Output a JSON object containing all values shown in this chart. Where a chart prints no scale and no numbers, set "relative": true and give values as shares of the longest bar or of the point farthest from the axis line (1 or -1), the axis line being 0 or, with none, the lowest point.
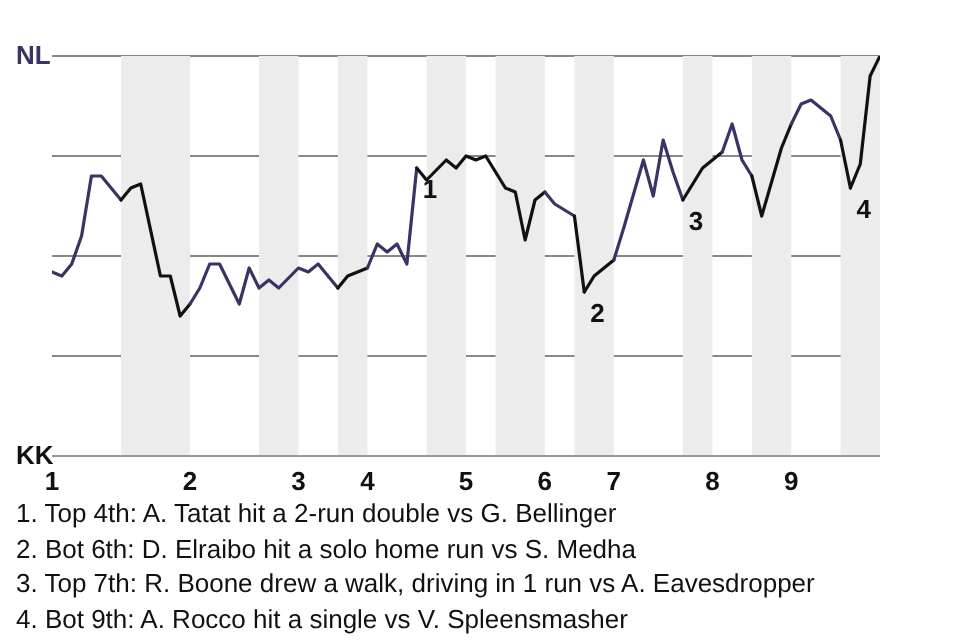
{
  "chart_data": {
    "type": "line",
    "relative": true,
    "categories": [
      "1",
      null,
      null,
      null,
      null,
      null,
      null,
      null,
      null,
      null,
      null,
      null,
      null,
      null,
      "2",
      null,
      null,
      null,
      null,
      null,
      null,
      null,
      null,
      null,
      null,
      "3",
      null,
      null,
      null,
      null,
      null,
      null,
      "4",
      null,
      null,
      null,
      null,
      null,
      null,
      null,
      null,
      null,
      "5",
      null,
      null,
      null,
      null,
      null,
      null,
      null,
      "6",
      null,
      null,
      null,
      null,
      null,
      null,
      "7",
      null,
      null,
      null,
      null,
      null,
      null,
      null,
      null,
      null,
      "8",
      null,
      null,
      null,
      null,
      null,
      null,
      null,
      "9",
      null,
      null,
      null,
      null,
      null,
      null,
      null,
      null,
      null
    ],
    "series": [
      {
        "color": "#3a3366",
        "values": [
          0.46,
          0.45,
          0.48,
          0.55,
          0.7,
          0.7,
          null,
          0.64,
          null,
          null,
          null,
          null,
          null,
          null,
          null,
          null,
          null,
          null,
          null,
          null,
          null,
          null,
          null,
          null,
          null,
          null,
          null,
          null,
          null,
          null,
          null,
          null,
          null,
          null,
          null,
          null,
          null,
          null,
          null,
          null,
          null,
          null,
          null,
          null,
          null,
          null,
          null,
          null,
          null,
          null,
          null,
          null,
          null,
          null,
          null,
          null,
          null,
          null,
          null,
          null,
          null,
          null,
          null,
          null,
          null,
          null,
          null,
          null,
          null,
          null,
          null,
          null,
          null,
          null,
          null,
          null,
          null,
          null,
          null,
          null,
          null,
          null,
          null,
          null,
          null
        ]
      },
      {
        "color": "#111111",
        "values": [
          null,
          null,
          null,
          null,
          null,
          null,
          null,
          0.64,
          0.67,
          0.68,
          null,
          0.45,
          0.45,
          0.35,
          0.38,
          null,
          null,
          null,
          null,
          null,
          null,
          null,
          null,
          null,
          null,
          null,
          null,
          null,
          null,
          null,
          null,
          null,
          null,
          null,
          null,
          null,
          null,
          null,
          null,
          null,
          null,
          null,
          null,
          null,
          null,
          null,
          null,
          null,
          null,
          null,
          null,
          null,
          null,
          null,
          null,
          null,
          null,
          null,
          null,
          null,
          null,
          null,
          null,
          null,
          null,
          null,
          null,
          null,
          null,
          null,
          null,
          null,
          null,
          null,
          null,
          null,
          null,
          null,
          null,
          null,
          null,
          null,
          null,
          null,
          null
        ]
      },
      {
        "color": "#3a3366",
        "values": [
          null,
          null,
          null,
          null,
          null,
          null,
          null,
          null,
          null,
          null,
          null,
          null,
          null,
          null,
          0.38,
          0.42,
          0.48,
          0.48,
          null,
          0.38,
          0.47,
          0.42,
          0.44,
          0.42,
          null,
          0.47,
          0.46,
          0.48,
          null,
          0.42,
          null,
          null,
          null,
          null,
          null,
          null,
          null,
          null,
          null,
          null,
          null,
          null,
          null,
          null,
          null,
          null,
          null,
          null,
          null,
          null,
          null,
          null,
          null,
          null,
          null,
          null,
          null,
          null,
          null,
          null,
          null,
          null,
          null,
          null,
          null,
          null,
          null,
          null,
          null,
          null,
          null,
          null,
          null,
          null,
          null,
          null,
          null,
          null,
          null,
          null,
          null,
          null,
          null,
          null,
          null
        ]
      },
      {
        "color": "#111111",
        "values": [
          null,
          null,
          null,
          null,
          null,
          null,
          null,
          null,
          null,
          null,
          null,
          null,
          null,
          null,
          null,
          null,
          null,
          null,
          null,
          null,
          null,
          null,
          null,
          null,
          null,
          null,
          null,
          null,
          null,
          0.42,
          0.45,
          null,
          0.47,
          null,
          null,
          null,
          null,
          null,
          null,
          null,
          null,
          null,
          null,
          null,
          null,
          null,
          null,
          null,
          null,
          null,
          null,
          null,
          null,
          null,
          null,
          null,
          null,
          null,
          null,
          null,
          null,
          null,
          null,
          null,
          null,
          null,
          null,
          null,
          null,
          null,
          null,
          null,
          null,
          null,
          null,
          null,
          null,
          null,
          null,
          null,
          null,
          null,
          null,
          null,
          null
        ]
      },
      {
        "name": "1",
        "color": "#3a3366",
        "values": [
          null,
          null,
          null,
          null,
          null,
          null,
          null,
          null,
          null,
          null,
          null,
          null,
          null,
          null,
          null,
          null,
          null,
          null,
          null,
          null,
          null,
          null,
          null,
          null,
          null,
          null,
          null,
          null,
          null,
          null,
          null,
          null,
          0.47,
          0.53,
          0.51,
          0.53,
          0.48,
          0.72,
          null,
          null,
          null,
          null,
          null,
          null,
          null,
          null,
          null,
          null,
          null,
          null,
          null,
          null,
          null,
          null,
          null,
          null,
          null,
          null,
          null,
          null,
          null,
          null,
          null,
          null,
          null,
          null,
          null,
          null,
          null,
          null,
          null,
          null,
          null,
          null,
          null,
          null,
          null,
          null,
          null,
          null,
          null,
          null,
          null,
          null,
          null
        ]
      },
      {
        "color": "#111111",
        "values": [
          null,
          null,
          null,
          null,
          null,
          null,
          null,
          null,
          null,
          null,
          null,
          null,
          null,
          null,
          null,
          null,
          null,
          null,
          null,
          null,
          null,
          null,
          null,
          null,
          null,
          null,
          null,
          null,
          null,
          null,
          null,
          null,
          null,
          null,
          null,
          null,
          null,
          0.72,
          0.69,
          null,
          0.74,
          0.72,
          0.75,
          0.74,
          0.75,
          0.71,
          0.67,
          0.66,
          0.54,
          0.64,
          0.66,
          null,
          null,
          null,
          null,
          null,
          null,
          null,
          null,
          null,
          null,
          null,
          null,
          null,
          null,
          null,
          null,
          null,
          null,
          null,
          null,
          null,
          null,
          null,
          null,
          null,
          null,
          null,
          null,
          null,
          null,
          null,
          null,
          null,
          null
        ]
      },
      {
        "color": "#3a3366",
        "values": [
          null,
          null,
          null,
          null,
          null,
          null,
          null,
          null,
          null,
          null,
          null,
          null,
          null,
          null,
          null,
          null,
          null,
          null,
          null,
          null,
          null,
          null,
          null,
          null,
          null,
          null,
          null,
          null,
          null,
          null,
          null,
          null,
          null,
          null,
          null,
          null,
          null,
          null,
          null,
          null,
          null,
          null,
          null,
          null,
          null,
          null,
          null,
          null,
          null,
          null,
          0.66,
          0.63,
          null,
          0.6,
          null,
          null,
          null,
          null,
          null,
          null,
          null,
          null,
          null,
          null,
          null,
          null,
          null,
          null,
          null,
          null,
          null,
          null,
          null,
          null,
          null,
          null,
          null,
          null,
          null,
          null,
          null,
          null,
          null,
          null,
          null
        ]
      },
      {
        "name": "2",
        "color": "#111111",
        "values": [
          null,
          null,
          null,
          null,
          null,
          null,
          null,
          null,
          null,
          null,
          null,
          null,
          null,
          null,
          null,
          null,
          null,
          null,
          null,
          null,
          null,
          null,
          null,
          null,
          null,
          null,
          null,
          null,
          null,
          null,
          null,
          null,
          null,
          null,
          null,
          null,
          null,
          null,
          null,
          null,
          null,
          null,
          null,
          null,
          null,
          null,
          null,
          null,
          null,
          null,
          null,
          null,
          null,
          0.6,
          0.41,
          null,
          null,
          null,
          null,
          null,
          null,
          null,
          null,
          null,
          null,
          null,
          null,
          null,
          null,
          null,
          null,
          null,
          null,
          null,
          null,
          null,
          null,
          null,
          null,
          null,
          null,
          null,
          null,
          null,
          null
        ]
      },
      {
        "color": "#111111",
        "values": [
          null,
          null,
          null,
          null,
          null,
          null,
          null,
          null,
          null,
          null,
          null,
          null,
          null,
          null,
          null,
          null,
          null,
          null,
          null,
          null,
          null,
          null,
          null,
          null,
          null,
          null,
          null,
          null,
          null,
          null,
          null,
          null,
          null,
          null,
          null,
          null,
          null,
          null,
          null,
          null,
          null,
          null,
          null,
          null,
          null,
          null,
          null,
          null,
          null,
          null,
          null,
          null,
          null,
          null,
          0.41,
          0.45,
          0.47,
          0.49,
          null,
          null,
          null,
          null,
          null,
          null,
          null,
          null,
          null,
          null,
          null,
          null,
          null,
          null,
          null,
          null,
          null,
          null,
          null,
          null,
          null,
          null,
          null,
          null,
          null,
          null,
          null
        ]
      },
      {
        "name": "3",
        "color": "#3a3366",
        "values": [
          null,
          null,
          null,
          null,
          null,
          null,
          null,
          null,
          null,
          null,
          null,
          null,
          null,
          null,
          null,
          null,
          null,
          null,
          null,
          null,
          null,
          null,
          null,
          null,
          null,
          null,
          null,
          null,
          null,
          null,
          null,
          null,
          null,
          null,
          null,
          null,
          null,
          null,
          null,
          null,
          null,
          null,
          null,
          null,
          null,
          null,
          null,
          null,
          null,
          null,
          null,
          null,
          null,
          null,
          null,
          null,
          null,
          0.49,
          0.57,
          null,
          0.74,
          0.65,
          0.79,
          0.71,
          0.64,
          null,
          null,
          null,
          null,
          null,
          null,
          null,
          null,
          null,
          null,
          null,
          null,
          null,
          null,
          null,
          null,
          null,
          null,
          null,
          null
        ]
      },
      {
        "color": "#111111",
        "values": [
          null,
          null,
          null,
          null,
          null,
          null,
          null,
          null,
          null,
          null,
          null,
          null,
          null,
          null,
          null,
          null,
          null,
          null,
          null,
          null,
          null,
          null,
          null,
          null,
          null,
          null,
          null,
          null,
          null,
          null,
          null,
          null,
          null,
          null,
          null,
          null,
          null,
          null,
          null,
          null,
          null,
          null,
          null,
          null,
          null,
          null,
          null,
          null,
          null,
          null,
          null,
          null,
          null,
          null,
          null,
          null,
          null,
          null,
          null,
          null,
          null,
          null,
          null,
          null,
          0.64,
          0.68,
          0.72,
          null,
          0.76,
          null,
          null,
          null,
          null,
          null,
          null,
          null,
          null,
          null,
          null,
          null,
          null,
          null,
          null,
          null,
          null
        ]
      },
      {
        "color": "#3a3366",
        "values": [
          null,
          null,
          null,
          null,
          null,
          null,
          null,
          null,
          null,
          null,
          null,
          null,
          null,
          null,
          null,
          null,
          null,
          null,
          null,
          null,
          null,
          null,
          null,
          null,
          null,
          null,
          null,
          null,
          null,
          null,
          null,
          null,
          null,
          null,
          null,
          null,
          null,
          null,
          null,
          null,
          null,
          null,
          null,
          null,
          null,
          null,
          null,
          null,
          null,
          null,
          null,
          null,
          null,
          null,
          null,
          null,
          null,
          null,
          null,
          null,
          null,
          null,
          null,
          null,
          null,
          null,
          null,
          null,
          0.76,
          0.83,
          0.74,
          0.7,
          null,
          null,
          null,
          null,
          null,
          null,
          null,
          null,
          null,
          null,
          null,
          null,
          null
        ]
      },
      {
        "color": "#111111",
        "values": [
          null,
          null,
          null,
          null,
          null,
          null,
          null,
          null,
          null,
          null,
          null,
          null,
          null,
          null,
          null,
          null,
          null,
          null,
          null,
          null,
          null,
          null,
          null,
          null,
          null,
          null,
          null,
          null,
          null,
          null,
          null,
          null,
          null,
          null,
          null,
          null,
          null,
          null,
          null,
          null,
          null,
          null,
          null,
          null,
          null,
          null,
          null,
          null,
          null,
          null,
          null,
          null,
          null,
          null,
          null,
          null,
          null,
          null,
          null,
          null,
          null,
          null,
          null,
          null,
          null,
          null,
          null,
          null,
          null,
          null,
          null,
          0.7,
          0.6,
          null,
          0.77,
          0.83,
          null,
          null,
          null,
          null,
          null,
          null,
          null,
          null,
          null
        ]
      },
      {
        "color": "#3a3366",
        "values": [
          null,
          null,
          null,
          null,
          null,
          null,
          null,
          null,
          null,
          null,
          null,
          null,
          null,
          null,
          null,
          null,
          null,
          null,
          null,
          null,
          null,
          null,
          null,
          null,
          null,
          null,
          null,
          null,
          null,
          null,
          null,
          null,
          null,
          null,
          null,
          null,
          null,
          null,
          null,
          null,
          null,
          null,
          null,
          null,
          null,
          null,
          null,
          null,
          null,
          null,
          null,
          null,
          null,
          null,
          null,
          null,
          null,
          null,
          null,
          null,
          null,
          null,
          null,
          null,
          null,
          null,
          null,
          null,
          null,
          null,
          null,
          null,
          null,
          null,
          null,
          0.83,
          0.88,
          0.89,
          0.87,
          0.85,
          0.79,
          null,
          null,
          null,
          null
        ]
      },
      {
        "name": "4",
        "color": "#111111",
        "values": [
          null,
          null,
          null,
          null,
          null,
          null,
          null,
          null,
          null,
          null,
          null,
          null,
          null,
          null,
          null,
          null,
          null,
          null,
          null,
          null,
          null,
          null,
          null,
          null,
          null,
          null,
          null,
          null,
          null,
          null,
          null,
          null,
          null,
          null,
          null,
          null,
          null,
          null,
          null,
          null,
          null,
          null,
          null,
          null,
          null,
          null,
          null,
          null,
          null,
          null,
          null,
          null,
          null,
          null,
          null,
          null,
          null,
          null,
          null,
          null,
          null,
          null,
          null,
          null,
          null,
          null,
          null,
          null,
          null,
          null,
          null,
          null,
          null,
          null,
          null,
          null,
          null,
          null,
          null,
          null,
          0.79,
          0.67,
          null,
          null,
          null
        ]
      },
      {
        "color": "#111111",
        "values": [
          null,
          null,
          null,
          null,
          null,
          null,
          null,
          null,
          null,
          null,
          null,
          null,
          null,
          null,
          null,
          null,
          null,
          null,
          null,
          null,
          null,
          null,
          null,
          null,
          null,
          null,
          null,
          null,
          null,
          null,
          null,
          null,
          null,
          null,
          null,
          null,
          null,
          null,
          null,
          null,
          null,
          null,
          null,
          null,
          null,
          null,
          null,
          null,
          null,
          null,
          null,
          null,
          null,
          null,
          null,
          null,
          null,
          null,
          null,
          null,
          null,
          null,
          null,
          null,
          null,
          null,
          null,
          null,
          null,
          null,
          null,
          null,
          null,
          null,
          null,
          null,
          null,
          null,
          null,
          null,
          null,
          0.67,
          0.73,
          0.95,
          1.0
        ]
      }
    ],
    "grid": "y",
    "annotations": [
      "NL",
      "KK",
      "1. Top 4th: A. Tatat hit a 2-run double vs G. Bellinger",
      "2. Bot 6th: D. Elraibo hit a solo home run vs S. Medha",
      "3. Top 7th: R. Boone drew a walk, driving in 1 run vs A. Eavesdropper",
      "4. Bot 9th: A. Rocco hit a single vs V. Spleensmasher"
    ]
  }
}
